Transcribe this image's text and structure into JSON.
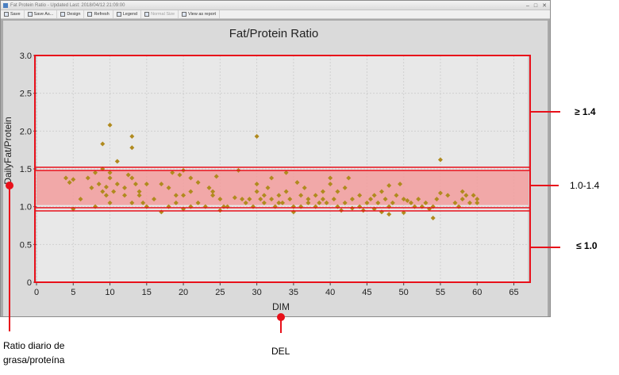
{
  "window": {
    "title": "Fat Protein Ratio - Updated Last: 2018/04/12 21:09:00",
    "toolbar": [
      {
        "label": "Save",
        "enabled": true
      },
      {
        "label": "Save As...",
        "enabled": true
      },
      {
        "label": "Design",
        "enabled": true
      },
      {
        "label": "Refresh",
        "enabled": true
      },
      {
        "label": "Legend",
        "enabled": true
      },
      {
        "label": "Normal Size",
        "enabled": false
      },
      {
        "label": "View as report",
        "enabled": true
      }
    ]
  },
  "chart_data": {
    "type": "scatter",
    "title": "Fat/Protein Ratio",
    "xlabel": "DIM",
    "ylabel": "DailyFat/Protein",
    "xlim": [
      0,
      67
    ],
    "ylim": [
      0,
      3.0
    ],
    "xticks": [
      0,
      5,
      10,
      15,
      20,
      25,
      30,
      35,
      40,
      45,
      50,
      55,
      60,
      65
    ],
    "yticks": [
      0,
      0.5,
      1.0,
      1.5,
      2.0,
      2.5,
      3.0
    ],
    "ytick_labels": [
      "0",
      "0.5",
      "1.0",
      "1.5",
      "2.0",
      "2.5",
      "3.0"
    ],
    "grid": true,
    "marker_color": "#b08a1e",
    "highlight_band": {
      "y_from": 1.0,
      "y_to": 1.5,
      "color": "#f29c9c"
    },
    "points": [
      [
        4,
        1.38
      ],
      [
        4.5,
        1.32
      ],
      [
        5,
        1.36
      ],
      [
        5,
        0.97
      ],
      [
        6,
        1.1
      ],
      [
        7,
        1.38
      ],
      [
        7.5,
        1.25
      ],
      [
        8,
        1.45
      ],
      [
        8,
        1.0
      ],
      [
        8.5,
        1.3
      ],
      [
        9,
        1.5
      ],
      [
        9,
        1.2
      ],
      [
        9,
        1.83
      ],
      [
        9.5,
        1.15
      ],
      [
        9.5,
        1.26
      ],
      [
        10,
        1.45
      ],
      [
        10,
        1.38
      ],
      [
        10,
        1.05
      ],
      [
        10,
        2.08
      ],
      [
        10.5,
        1.2
      ],
      [
        11,
        1.3
      ],
      [
        11,
        1.6
      ],
      [
        12,
        1.25
      ],
      [
        12,
        1.15
      ],
      [
        12.5,
        1.42
      ],
      [
        13,
        1.78
      ],
      [
        13,
        1.93
      ],
      [
        13,
        1.38
      ],
      [
        13,
        1.05
      ],
      [
        13.5,
        1.3
      ],
      [
        14,
        1.2
      ],
      [
        14,
        1.15
      ],
      [
        14.5,
        1.05
      ],
      [
        15,
        1.3
      ],
      [
        15,
        1.0
      ],
      [
        16,
        1.1
      ],
      [
        17,
        1.3
      ],
      [
        17,
        0.93
      ],
      [
        18,
        1.25
      ],
      [
        18,
        1.0
      ],
      [
        18.5,
        1.45
      ],
      [
        19,
        1.15
      ],
      [
        19,
        1.05
      ],
      [
        19.5,
        1.42
      ],
      [
        20,
        1.48
      ],
      [
        20,
        0.97
      ],
      [
        20,
        1.15
      ],
      [
        21,
        1.38
      ],
      [
        21,
        1.2
      ],
      [
        21,
        1.0
      ],
      [
        22,
        1.32
      ],
      [
        22,
        1.05
      ],
      [
        23,
        1.0
      ],
      [
        23.5,
        1.25
      ],
      [
        24,
        1.15
      ],
      [
        24,
        1.2
      ],
      [
        24.5,
        1.4
      ],
      [
        25,
        1.1
      ],
      [
        25,
        0.95
      ],
      [
        25.5,
        1.0
      ],
      [
        26,
        1.0
      ],
      [
        27,
        1.12
      ],
      [
        27.5,
        1.48
      ],
      [
        28,
        1.1
      ],
      [
        28.5,
        1.05
      ],
      [
        29,
        1.1
      ],
      [
        29.5,
        1.0
      ],
      [
        30,
        1.2
      ],
      [
        30,
        1.93
      ],
      [
        30,
        1.3
      ],
      [
        30.5,
        1.1
      ],
      [
        31,
        1.15
      ],
      [
        31,
        1.05
      ],
      [
        31.5,
        1.25
      ],
      [
        32,
        1.38
      ],
      [
        32,
        1.1
      ],
      [
        32.5,
        1.0
      ],
      [
        33,
        1.15
      ],
      [
        33,
        1.05
      ],
      [
        33.5,
        1.05
      ],
      [
        34,
        1.45
      ],
      [
        34,
        1.2
      ],
      [
        34.5,
        1.1
      ],
      [
        35,
        0.93
      ],
      [
        35,
        1.0
      ],
      [
        35.5,
        1.32
      ],
      [
        36,
        1.15
      ],
      [
        36,
        1.0
      ],
      [
        36.5,
        1.25
      ],
      [
        37,
        1.1
      ],
      [
        37,
        1.05
      ],
      [
        38,
        1.15
      ],
      [
        38,
        1.0
      ],
      [
        38.5,
        1.05
      ],
      [
        39,
        1.1
      ],
      [
        39,
        1.2
      ],
      [
        39.5,
        1.05
      ],
      [
        40,
        1.38
      ],
      [
        40,
        1.3
      ],
      [
        40.5,
        1.1
      ],
      [
        41,
        1.2
      ],
      [
        41,
        1.0
      ],
      [
        41.5,
        0.95
      ],
      [
        42,
        1.25
      ],
      [
        42,
        1.05
      ],
      [
        42.5,
        1.38
      ],
      [
        43,
        0.98
      ],
      [
        43,
        1.1
      ],
      [
        44,
        1.15
      ],
      [
        44,
        1.0
      ],
      [
        44.5,
        0.95
      ],
      [
        45,
        1.05
      ],
      [
        45.5,
        1.1
      ],
      [
        46,
        1.15
      ],
      [
        46,
        0.97
      ],
      [
        46.5,
        1.05
      ],
      [
        47,
        1.2
      ],
      [
        47,
        0.93
      ],
      [
        47.5,
        1.1
      ],
      [
        48,
        1.0
      ],
      [
        48,
        0.9
      ],
      [
        48,
        1.28
      ],
      [
        48.5,
        1.05
      ],
      [
        49,
        1.15
      ],
      [
        49.5,
        1.3
      ],
      [
        50,
        0.92
      ],
      [
        50,
        1.1
      ],
      [
        50.5,
        1.08
      ],
      [
        51,
        1.05
      ],
      [
        51.5,
        1.0
      ],
      [
        52,
        1.1
      ],
      [
        52.5,
        1.0
      ],
      [
        53,
        1.05
      ],
      [
        53.5,
        0.97
      ],
      [
        54,
        0.85
      ],
      [
        54,
        1.0
      ],
      [
        54.5,
        1.1
      ],
      [
        55,
        1.18
      ],
      [
        55,
        1.62
      ],
      [
        56,
        1.15
      ],
      [
        57,
        1.05
      ],
      [
        57.5,
        1.0
      ],
      [
        58,
        1.2
      ],
      [
        58,
        1.1
      ],
      [
        58.5,
        1.15
      ],
      [
        59,
        1.05
      ],
      [
        59.5,
        1.15
      ],
      [
        60,
        1.1
      ],
      [
        60,
        1.05
      ]
    ],
    "y_axis_ticks_placeholder": null
  },
  "annotations": {
    "high": "≥ 1.4",
    "mid": "1.0-1.4",
    "low": "≤ 1.0",
    "ylabel_line1": "Ratio diario de",
    "ylabel_line2": "grasa/proteína",
    "xlabel": "DEL",
    "red": "#e8101a"
  }
}
